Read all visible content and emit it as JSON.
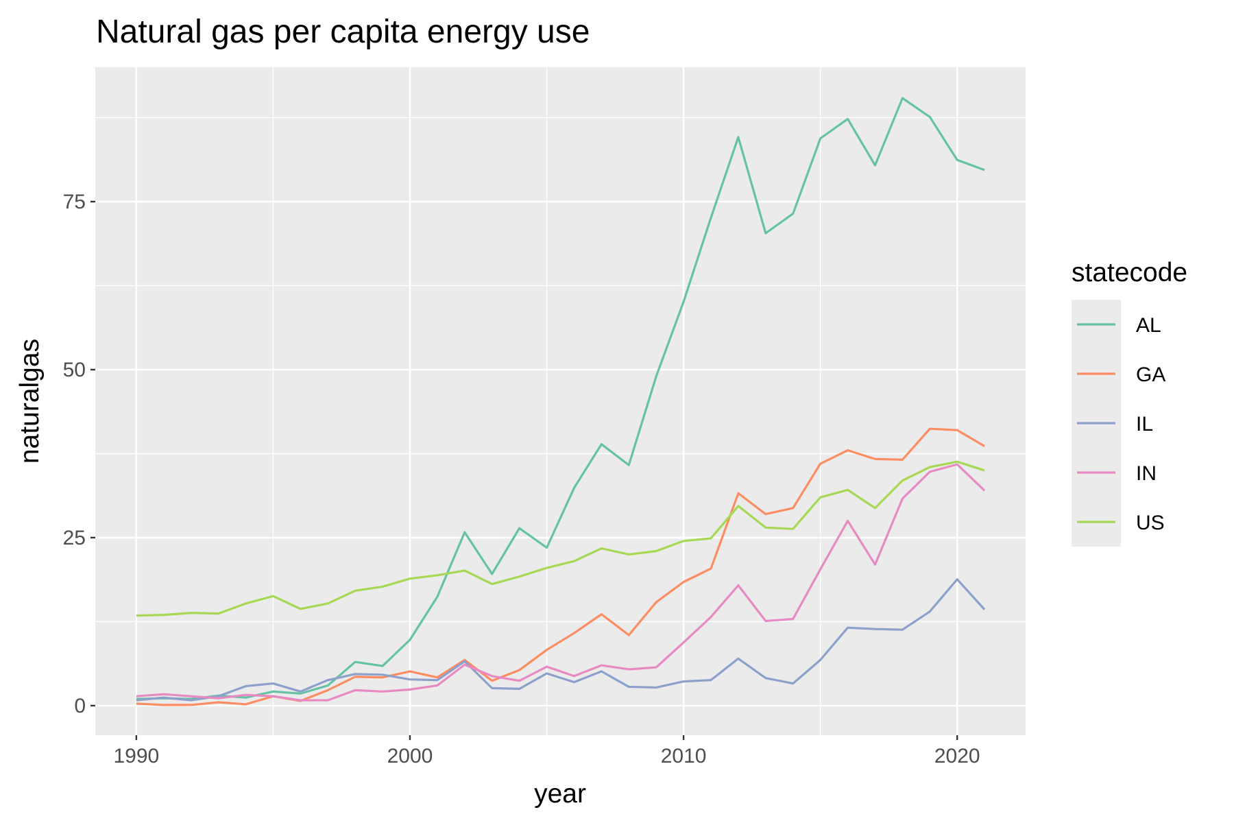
{
  "chart_data": {
    "type": "line",
    "title": "Natural gas per capita energy use",
    "xlabel": "year",
    "ylabel": "naturalgas",
    "xlim": [
      1988.5,
      2022.5
    ],
    "ylim": [
      -4.4,
      95
    ],
    "x_ticks": [
      1990,
      2000,
      2010,
      2020
    ],
    "x_tick_labels": [
      "1990",
      "2000",
      "2010",
      "2020"
    ],
    "y_ticks": [
      0,
      25,
      50,
      75
    ],
    "y_tick_labels": [
      "0",
      "25",
      "50",
      "75"
    ],
    "grid": true,
    "legend": {
      "title": "statecode",
      "position": "right"
    },
    "x": [
      1990,
      1991,
      1992,
      1993,
      1994,
      1995,
      1996,
      1997,
      1998,
      1999,
      2000,
      2001,
      2002,
      2003,
      2004,
      2005,
      2006,
      2007,
      2008,
      2009,
      2010,
      2011,
      2012,
      2013,
      2014,
      2015,
      2016,
      2017,
      2018,
      2019,
      2020,
      2021
    ],
    "series": [
      {
        "name": "AL",
        "color": "#66c2a5",
        "values": [
          1.0,
          1.1,
          1.0,
          1.5,
          1.2,
          2.1,
          1.8,
          3.0,
          6.5,
          5.9,
          9.8,
          16.2,
          25.8,
          19.6,
          26.4,
          23.5,
          32.4,
          38.9,
          35.8,
          49.0,
          60.1,
          72.6,
          84.6,
          70.3,
          73.2,
          84.4,
          87.3,
          80.4,
          90.4,
          87.6,
          81.2,
          79.7
        ]
      },
      {
        "name": "GA",
        "color": "#fc8d62",
        "values": [
          0.3,
          0.1,
          0.1,
          0.5,
          0.2,
          1.4,
          0.7,
          2.3,
          4.3,
          4.2,
          5.1,
          4.2,
          6.8,
          3.7,
          5.3,
          8.3,
          10.8,
          13.6,
          10.5,
          15.4,
          18.4,
          20.4,
          31.6,
          28.5,
          29.4,
          36.0,
          38.0,
          36.7,
          36.6,
          41.2,
          41.0,
          38.6
        ]
      },
      {
        "name": "IL",
        "color": "#8da0cb",
        "values": [
          0.8,
          1.2,
          0.8,
          1.4,
          2.9,
          3.3,
          2.1,
          3.8,
          4.7,
          4.6,
          3.9,
          3.8,
          6.6,
          2.6,
          2.5,
          4.8,
          3.5,
          5.1,
          2.8,
          2.7,
          3.6,
          3.8,
          7.0,
          4.1,
          3.3,
          6.8,
          11.6,
          11.4,
          11.3,
          14.0,
          18.8,
          14.3
        ]
      },
      {
        "name": "IN",
        "color": "#e78ac3",
        "values": [
          1.4,
          1.7,
          1.4,
          1.1,
          1.6,
          1.4,
          0.8,
          0.8,
          2.3,
          2.1,
          2.4,
          3.0,
          6.1,
          4.4,
          3.7,
          5.8,
          4.4,
          6.0,
          5.4,
          5.7,
          9.4,
          13.2,
          17.9,
          12.6,
          12.9,
          20.3,
          27.5,
          21.0,
          30.8,
          34.8,
          35.9,
          32.0
        ]
      },
      {
        "name": "US",
        "color": "#a6d854",
        "values": [
          13.4,
          13.5,
          13.8,
          13.7,
          15.2,
          16.3,
          14.4,
          15.2,
          17.1,
          17.7,
          18.9,
          19.4,
          20.1,
          18.1,
          19.2,
          20.5,
          21.5,
          23.4,
          22.5,
          23.0,
          24.5,
          24.9,
          29.7,
          26.5,
          26.3,
          31.0,
          32.1,
          29.4,
          33.5,
          35.5,
          36.3,
          35.0
        ]
      }
    ]
  }
}
